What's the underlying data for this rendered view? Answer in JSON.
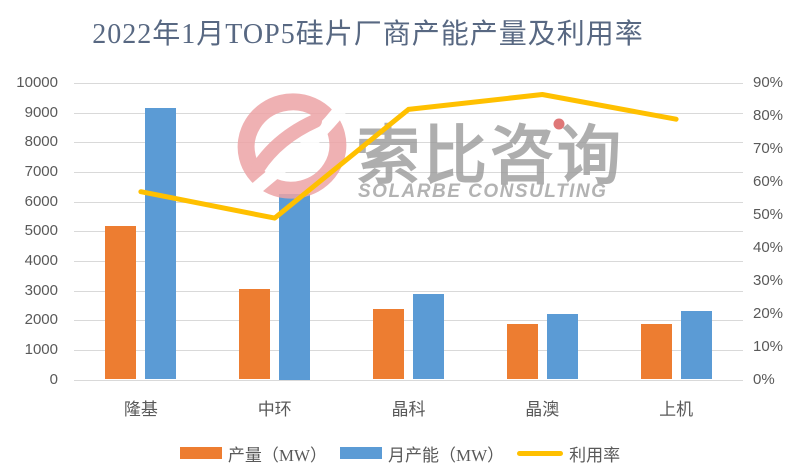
{
  "chart": {
    "title": "2022年1月TOP5硅片厂商产能产量及利用率"
  },
  "chart_data": {
    "type": "bar",
    "subtype": "grouped bars with secondary-axis line",
    "title": "2022年1月TOP5硅片厂商产能产量及利用率",
    "categories": [
      "隆基",
      "中环",
      "晶科",
      "晶澳",
      "上机"
    ],
    "category_slugs": [
      "longi",
      "zhonghuan",
      "jinko",
      "jingao",
      "shangji"
    ],
    "series": [
      {
        "name": "产量（MW）",
        "key": "output",
        "type": "bar",
        "axis": "left",
        "color": "#ED7D31",
        "values": [
          5190,
          3050,
          2370,
          1860,
          1860
        ]
      },
      {
        "name": "月产能（MW）",
        "key": "capacity",
        "type": "bar",
        "axis": "left",
        "color": "#5B9BD5",
        "values": [
          9170,
          6250,
          2900,
          2200,
          2320
        ]
      },
      {
        "name": "利用率",
        "key": "utilization",
        "type": "line",
        "axis": "right",
        "color": "#FFC000",
        "values": [
          57,
          49,
          82,
          86.5,
          79
        ]
      }
    ],
    "left_axis": {
      "min": 0,
      "max": 10000,
      "step": 1000,
      "ticks": [
        "0",
        "1000",
        "2000",
        "3000",
        "4000",
        "5000",
        "6000",
        "7000",
        "8000",
        "9000",
        "10000"
      ]
    },
    "right_axis": {
      "min": 0,
      "max": 90,
      "step": 10,
      "ticks": [
        "0%",
        "10%",
        "20%",
        "30%",
        "40%",
        "50%",
        "60%",
        "70%",
        "80%",
        "90%"
      ]
    },
    "grid": true,
    "gridline_color": "#d9d9d9",
    "legend_position": "bottom",
    "xlabel": "",
    "ylabel": ""
  },
  "watermark": {
    "text_cn": "索比咨询",
    "text_en": "SOLARBE CONSULTING",
    "logo_color": "#eda4a6",
    "dot_color": "#d95f5f"
  },
  "colors": {
    "title": "#586882",
    "axis_text": "#595959",
    "background": "#ffffff"
  }
}
